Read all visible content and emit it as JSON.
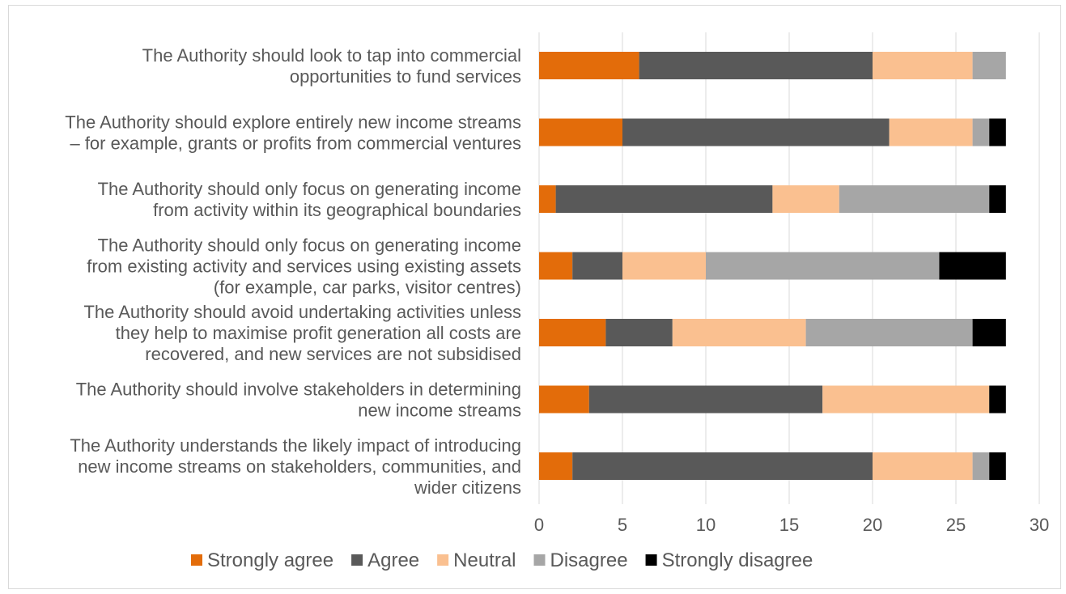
{
  "chart_data": {
    "type": "bar",
    "orientation": "horizontal",
    "stacked": true,
    "categories": [
      "The Authority should look to tap into commercial opportunities to fund services",
      "The Authority should explore entirely new income streams – for example, grants or profits from commercial ventures",
      "The Authority should only focus on generating income from activity within its geographical boundaries",
      "The Authority should only focus on generating income from existing activity and services using existing assets (for example, car parks, visitor centres)",
      "The Authority should avoid undertaking activities unless they help to maximise profit generation all costs are recovered, and new services are not subsidised",
      "The Authority should involve stakeholders in determining new income streams",
      "The Authority understands the likely impact of introducing new income streams on stakeholders, communities, and wider citizens"
    ],
    "category_lines": [
      [
        "The Authority should look to tap into commercial",
        "opportunities to fund services"
      ],
      [
        "The Authority should explore entirely new income streams",
        "– for example, grants or profits from commercial ventures"
      ],
      [
        "The Authority should only focus on generating income",
        "from activity within its geographical boundaries"
      ],
      [
        "The Authority should only focus on generating income",
        "from existing activity and services using existing assets",
        "(for example, car parks, visitor centres)"
      ],
      [
        "The Authority should avoid undertaking activities unless",
        "they help to maximise profit generation all costs are",
        "recovered, and new services are not subsidised"
      ],
      [
        "The Authority should involve stakeholders in determining",
        "new income streams"
      ],
      [
        "The Authority understands the likely impact of introducing",
        "new income streams on stakeholders, communities, and",
        "wider citizens"
      ]
    ],
    "series": [
      {
        "name": "Strongly agree",
        "color": "#e36c0a",
        "values": [
          6,
          5,
          1,
          2,
          4,
          3,
          2
        ]
      },
      {
        "name": "Agree",
        "color": "#595959",
        "values": [
          14,
          16,
          13,
          3,
          4,
          14,
          18
        ]
      },
      {
        "name": "Neutral",
        "color": "#fac090",
        "values": [
          6,
          5,
          4,
          5,
          8,
          10,
          6
        ]
      },
      {
        "name": "Disagree",
        "color": "#a6a6a6",
        "values": [
          2,
          1,
          9,
          14,
          10,
          0,
          1
        ]
      },
      {
        "name": "Strongly disagree",
        "color": "#000000",
        "values": [
          0,
          1,
          1,
          4,
          2,
          1,
          1
        ]
      }
    ],
    "xlim": [
      0,
      30
    ],
    "xticks": [
      "0",
      "5",
      "10",
      "15",
      "20",
      "25",
      "30"
    ],
    "grid": true,
    "legend": "bottom",
    "title": "",
    "xlabel": "",
    "ylabel": ""
  }
}
